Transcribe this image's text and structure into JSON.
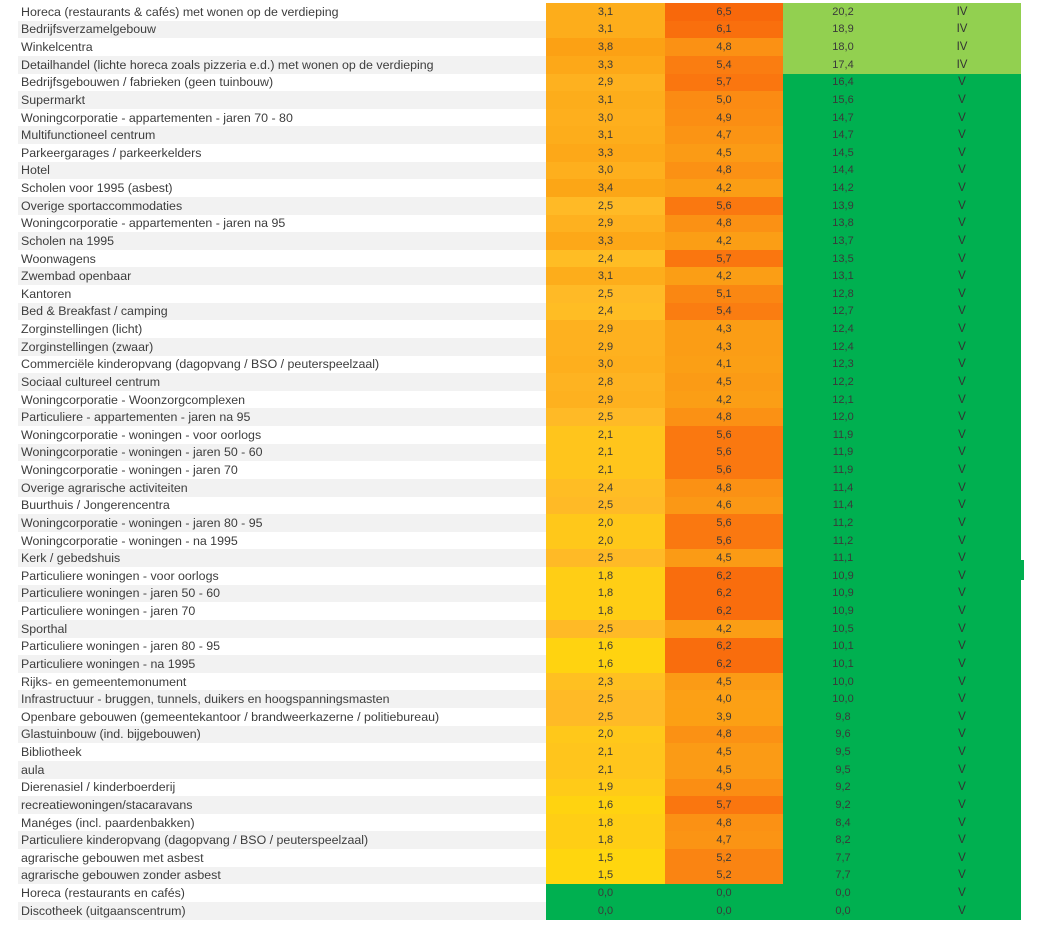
{
  "colors": {
    "green": "#00B050",
    "light_green": "#92D050",
    "stripe": "#F2F2F2",
    "label_text": "#3D3D3D",
    "number_text": "#3A3A3A",
    "heat_stops": [
      [
        1.5,
        "#FFD60E"
      ],
      [
        2.5,
        "#FFBA26"
      ],
      [
        3.5,
        "#FCA414"
      ],
      [
        4.5,
        "#FB9B15"
      ],
      [
        5.5,
        "#FA7A10"
      ],
      [
        6.5,
        "#F8680B"
      ]
    ]
  },
  "table": {
    "rows": [
      {
        "label": "Horeca (restaurants & cafés) met wonen op de verdieping",
        "a": "3,1",
        "b": "6,5",
        "c": "20,2",
        "class": "IV"
      },
      {
        "label": "Bedrijfsverzamelgebouw",
        "a": "3,1",
        "b": "6,1",
        "c": "18,9",
        "class": "IV"
      },
      {
        "label": "Winkelcentra",
        "a": "3,8",
        "b": "4,8",
        "c": "18,0",
        "class": "IV"
      },
      {
        "label": "Detailhandel (lichte horeca zoals pizzeria e.d.) met wonen op de verdieping",
        "a": "3,3",
        "b": "5,4",
        "c": "17,4",
        "class": "IV"
      },
      {
        "label": "Bedrijfsgebouwen / fabrieken (geen tuinbouw)",
        "a": "2,9",
        "b": "5,7",
        "c": "16,4",
        "class": "V"
      },
      {
        "label": "Supermarkt",
        "a": "3,1",
        "b": "5,0",
        "c": "15,6",
        "class": "V"
      },
      {
        "label": "Woningcorporatie - appartementen - jaren 70 - 80",
        "a": "3,0",
        "b": "4,9",
        "c": "14,7",
        "class": "V"
      },
      {
        "label": "Multifunctioneel centrum",
        "a": "3,1",
        "b": "4,7",
        "c": "14,7",
        "class": "V"
      },
      {
        "label": "Parkeergarages / parkeerkelders",
        "a": "3,3",
        "b": "4,5",
        "c": "14,5",
        "class": "V"
      },
      {
        "label": "Hotel",
        "a": "3,0",
        "b": "4,8",
        "c": "14,4",
        "class": "V"
      },
      {
        "label": "Scholen voor 1995 (asbest)",
        "a": "3,4",
        "b": "4,2",
        "c": "14,2",
        "class": "V"
      },
      {
        "label": "Overige sportaccommodaties",
        "a": "2,5",
        "b": "5,6",
        "c": "13,9",
        "class": "V"
      },
      {
        "label": "Woningcorporatie - appartementen - jaren na 95",
        "a": "2,9",
        "b": "4,8",
        "c": "13,8",
        "class": "V"
      },
      {
        "label": "Scholen na 1995",
        "a": "3,3",
        "b": "4,2",
        "c": "13,7",
        "class": "V"
      },
      {
        "label": "Woonwagens",
        "a": "2,4",
        "b": "5,7",
        "c": "13,5",
        "class": "V"
      },
      {
        "label": "Zwembad openbaar",
        "a": "3,1",
        "b": "4,2",
        "c": "13,1",
        "class": "V"
      },
      {
        "label": "Kantoren",
        "a": "2,5",
        "b": "5,1",
        "c": "12,8",
        "class": "V"
      },
      {
        "label": "Bed & Breakfast / camping",
        "a": "2,4",
        "b": "5,4",
        "c": "12,7",
        "class": "V"
      },
      {
        "label": "Zorginstellingen (licht)",
        "a": "2,9",
        "b": "4,3",
        "c": "12,4",
        "class": "V"
      },
      {
        "label": "Zorginstellingen (zwaar)",
        "a": "2,9",
        "b": "4,3",
        "c": "12,4",
        "class": "V"
      },
      {
        "label": "Commerciële kinderopvang (dagopvang / BSO / peuterspeelzaal)",
        "a": "3,0",
        "b": "4,1",
        "c": "12,3",
        "class": "V"
      },
      {
        "label": "Sociaal cultureel centrum",
        "a": "2,8",
        "b": "4,5",
        "c": "12,2",
        "class": "V"
      },
      {
        "label": "Woningcorporatie - Woonzorgcomplexen",
        "a": "2,9",
        "b": "4,2",
        "c": "12,1",
        "class": "V"
      },
      {
        "label": "Particuliere - appartementen - jaren na 95",
        "a": "2,5",
        "b": "4,8",
        "c": "12,0",
        "class": "V"
      },
      {
        "label": "Woningcorporatie - woningen - voor oorlogs",
        "a": "2,1",
        "b": "5,6",
        "c": "11,9",
        "class": "V"
      },
      {
        "label": "Woningcorporatie - woningen - jaren 50 - 60",
        "a": "2,1",
        "b": "5,6",
        "c": "11,9",
        "class": "V"
      },
      {
        "label": "Woningcorporatie - woningen - jaren 70",
        "a": "2,1",
        "b": "5,6",
        "c": "11,9",
        "class": "V"
      },
      {
        "label": "Overige agrarische activiteiten",
        "a": "2,4",
        "b": "4,8",
        "c": "11,4",
        "class": "V"
      },
      {
        "label": "Buurthuis / Jongerencentra",
        "a": "2,5",
        "b": "4,6",
        "c": "11,4",
        "class": "V"
      },
      {
        "label": "Woningcorporatie - woningen - jaren 80 - 95",
        "a": "2,0",
        "b": "5,6",
        "c": "11,2",
        "class": "V"
      },
      {
        "label": "Woningcorporatie - woningen - na 1995",
        "a": "2,0",
        "b": "5,6",
        "c": "11,2",
        "class": "V"
      },
      {
        "label": "Kerk / gebedshuis",
        "a": "2,5",
        "b": "4,5",
        "c": "11,1",
        "class": "V"
      },
      {
        "label": "Particuliere woningen - voor oorlogs",
        "a": "1,8",
        "b": "6,2",
        "c": "10,9",
        "class": "V"
      },
      {
        "label": "Particuliere woningen - jaren 50 - 60",
        "a": "1,8",
        "b": "6,2",
        "c": "10,9",
        "class": "V"
      },
      {
        "label": "Particuliere woningen - jaren 70",
        "a": "1,8",
        "b": "6,2",
        "c": "10,9",
        "class": "V"
      },
      {
        "label": "Sporthal",
        "a": "2,5",
        "b": "4,2",
        "c": "10,5",
        "class": "V"
      },
      {
        "label": "Particuliere woningen - jaren 80 - 95",
        "a": "1,6",
        "b": "6,2",
        "c": "10,1",
        "class": "V"
      },
      {
        "label": "Particuliere woningen - na 1995",
        "a": "1,6",
        "b": "6,2",
        "c": "10,1",
        "class": "V"
      },
      {
        "label": "Rijks- en gemeentemonument",
        "a": "2,3",
        "b": "4,5",
        "c": "10,0",
        "class": "V"
      },
      {
        "label": "Infrastructuur - bruggen, tunnels, duikers en hoogspanningsmasten",
        "a": "2,5",
        "b": "4,0",
        "c": "10,0",
        "class": "V"
      },
      {
        "label": "Openbare gebouwen (gemeentekantoor / brandweerkazerne / politiebureau)",
        "a": "2,5",
        "b": "3,9",
        "c": "9,8",
        "class": "V"
      },
      {
        "label": "Glastuinbouw (ind. bijgebouwen)",
        "a": "2,0",
        "b": "4,8",
        "c": "9,6",
        "class": "V"
      },
      {
        "label": "Bibliotheek",
        "a": "2,1",
        "b": "4,5",
        "c": "9,5",
        "class": "V"
      },
      {
        "label": "aula",
        "a": "2,1",
        "b": "4,5",
        "c": "9,5",
        "class": "V"
      },
      {
        "label": "Dierenasiel / kinderboerderij",
        "a": "1,9",
        "b": "4,9",
        "c": "9,2",
        "class": "V"
      },
      {
        "label": "recreatiewoningen/stacaravans",
        "a": "1,6",
        "b": "5,7",
        "c": "9,2",
        "class": "V"
      },
      {
        "label": "Manéges (incl. paardenbakken)",
        "a": "1,8",
        "b": "4,8",
        "c": "8,4",
        "class": "V"
      },
      {
        "label": "Particuliere kinderopvang (dagopvang / BSO / peuterspeelzaal)",
        "a": "1,8",
        "b": "4,7",
        "c": "8,2",
        "class": "V"
      },
      {
        "label": "agrarische gebouwen met asbest",
        "a": "1,5",
        "b": "5,2",
        "c": "7,7",
        "class": "V"
      },
      {
        "label": "agrarische gebouwen zonder asbest",
        "a": "1,5",
        "b": "5,2",
        "c": "7,7",
        "class": "V"
      },
      {
        "label": "Horeca (restaurants en cafés)",
        "a": "0,0",
        "b": "0,0",
        "c": "0,0",
        "class": "V"
      },
      {
        "label": "Discotheek (uitgaanscentrum)",
        "a": "0,0",
        "b": "0,0",
        "c": "0,0",
        "class": "V"
      }
    ]
  },
  "chart_data": {
    "type": "heatmap",
    "title": "",
    "categories": [
      "Horeca (restaurants & cafés) met wonen op de verdieping",
      "Bedrijfsverzamelgebouw",
      "Winkelcentra",
      "Detailhandel (lichte horeca zoals pizzeria e.d.) met wonen op de verdieping",
      "Bedrijfsgebouwen / fabrieken (geen tuinbouw)",
      "Supermarkt",
      "Woningcorporatie - appartementen - jaren 70 - 80",
      "Multifunctioneel centrum",
      "Parkeergarages / parkeerkelders",
      "Hotel",
      "Scholen voor 1995 (asbest)",
      "Overige sportaccommodaties",
      "Woningcorporatie - appartementen - jaren na 95",
      "Scholen na 1995",
      "Woonwagens",
      "Zwembad openbaar",
      "Kantoren",
      "Bed & Breakfast / camping",
      "Zorginstellingen (licht)",
      "Zorginstellingen (zwaar)",
      "Commerciële kinderopvang (dagopvang / BSO / peuterspeelzaal)",
      "Sociaal cultureel centrum",
      "Woningcorporatie - Woonzorgcomplexen",
      "Particuliere - appartementen - jaren na 95",
      "Woningcorporatie - woningen - voor oorlogs",
      "Woningcorporatie - woningen - jaren 50 - 60",
      "Woningcorporatie - woningen - jaren 70",
      "Overige agrarische activiteiten",
      "Buurthuis / Jongerencentra",
      "Woningcorporatie - woningen - jaren 80 - 95",
      "Woningcorporatie - woningen - na 1995",
      "Kerk / gebedshuis",
      "Particuliere woningen - voor oorlogs",
      "Particuliere woningen - jaren 50 - 60",
      "Particuliere woningen - jaren 70",
      "Sporthal",
      "Particuliere woningen - jaren 80 - 95",
      "Particuliere woningen - na 1995",
      "Rijks- en gemeentemonument",
      "Infrastructuur - bruggen, tunnels, duikers en hoogspanningsmasten",
      "Openbare gebouwen (gemeentekantoor / brandweerkazerne / politiebureau)",
      "Glastuinbouw (ind. bijgebouwen)",
      "Bibliotheek",
      "aula",
      "Dierenasiel / kinderboerderij",
      "recreatiewoningen/stacaravans",
      "Manéges (incl. paardenbakken)",
      "Particuliere kinderopvang (dagopvang / BSO / peuterspeelzaal)",
      "agrarische gebouwen met asbest",
      "agrarische gebouwen zonder asbest",
      "Horeca (restaurants en cafés)",
      "Discotheek (uitgaanscentrum)"
    ],
    "series": [
      {
        "name": "column_1",
        "values": [
          3.1,
          3.1,
          3.8,
          3.3,
          2.9,
          3.1,
          3.0,
          3.1,
          3.3,
          3.0,
          3.4,
          2.5,
          2.9,
          3.3,
          2.4,
          3.1,
          2.5,
          2.4,
          2.9,
          2.9,
          3.0,
          2.8,
          2.9,
          2.5,
          2.1,
          2.1,
          2.1,
          2.4,
          2.5,
          2.0,
          2.0,
          2.5,
          1.8,
          1.8,
          1.8,
          2.5,
          1.6,
          1.6,
          2.3,
          2.5,
          2.5,
          2.0,
          2.1,
          2.1,
          1.9,
          1.6,
          1.8,
          1.8,
          1.5,
          1.5,
          0.0,
          0.0
        ]
      },
      {
        "name": "column_2",
        "values": [
          6.5,
          6.1,
          4.8,
          5.4,
          5.7,
          5.0,
          4.9,
          4.7,
          4.5,
          4.8,
          4.2,
          5.6,
          4.8,
          4.2,
          5.7,
          4.2,
          5.1,
          5.4,
          4.3,
          4.3,
          4.1,
          4.5,
          4.2,
          4.8,
          5.6,
          5.6,
          5.6,
          4.8,
          4.6,
          5.6,
          5.6,
          4.5,
          6.2,
          6.2,
          6.2,
          4.2,
          6.2,
          6.2,
          4.5,
          4.0,
          3.9,
          4.8,
          4.5,
          4.5,
          4.9,
          5.7,
          4.8,
          4.7,
          5.2,
          5.2,
          0.0,
          0.0
        ]
      },
      {
        "name": "column_3",
        "values": [
          20.2,
          18.9,
          18.0,
          17.4,
          16.4,
          15.6,
          14.7,
          14.7,
          14.5,
          14.4,
          14.2,
          13.9,
          13.8,
          13.7,
          13.5,
          13.1,
          12.8,
          12.7,
          12.4,
          12.4,
          12.3,
          12.2,
          12.1,
          12.0,
          11.9,
          11.9,
          11.9,
          11.4,
          11.4,
          11.2,
          11.2,
          11.1,
          10.9,
          10.9,
          10.9,
          10.5,
          10.1,
          10.1,
          10.0,
          10.0,
          9.8,
          9.6,
          9.5,
          9.5,
          9.2,
          9.2,
          8.4,
          8.2,
          7.7,
          7.7,
          0.0,
          0.0
        ]
      },
      {
        "name": "class",
        "values": [
          "IV",
          "IV",
          "IV",
          "IV",
          "V",
          "V",
          "V",
          "V",
          "V",
          "V",
          "V",
          "V",
          "V",
          "V",
          "V",
          "V",
          "V",
          "V",
          "V",
          "V",
          "V",
          "V",
          "V",
          "V",
          "V",
          "V",
          "V",
          "V",
          "V",
          "V",
          "V",
          "V",
          "V",
          "V",
          "V",
          "V",
          "V",
          "V",
          "V",
          "V",
          "V",
          "V",
          "V",
          "V",
          "V",
          "V",
          "V",
          "V",
          "V",
          "V",
          "V",
          "V"
        ]
      }
    ],
    "legend": "none",
    "grid": false,
    "color_coding": {
      "columns_1_2": "gradient yellow (low) to dark orange (high), green at 0",
      "columns_3_4": "IV = light green #92D050, V = green #00B050"
    }
  }
}
